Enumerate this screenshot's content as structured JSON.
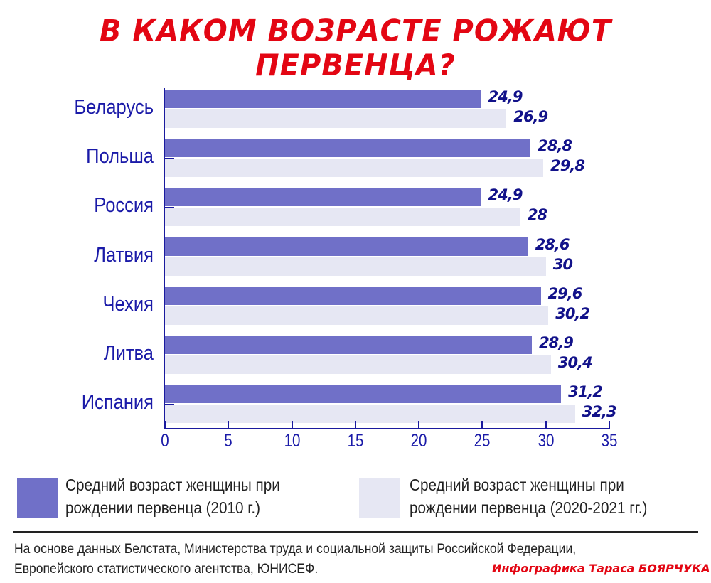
{
  "title": "В каком возрасте рожают первенца?",
  "colors": {
    "title": "#e30613",
    "series_2010": "#7070c8",
    "series_2020": "#e6e7f3",
    "labels": "#1a1aa8",
    "values": "#12128a"
  },
  "chart_data": {
    "type": "bar",
    "orientation": "horizontal",
    "title": "В каком возрасте рожают первенца?",
    "categories": [
      "Беларусь",
      "Польша",
      "Россия",
      "Латвия",
      "Чехия",
      "Литва",
      "Испания"
    ],
    "series": [
      {
        "name": "Средний возраст женщины при рождении первенца (2010 г.)",
        "color": "#7070c8",
        "values": [
          24.9,
          28.8,
          24.9,
          28.6,
          29.6,
          28.9,
          31.2
        ],
        "labels": [
          "24,9",
          "28,8",
          "24,9",
          "28,6",
          "29,6",
          "28,9",
          "31,2"
        ]
      },
      {
        "name": "Средний возраст женщины при рождении первенца (2020-2021 гг.)",
        "color": "#e6e7f3",
        "values": [
          26.9,
          29.8,
          28,
          30,
          30.2,
          30.4,
          32.3
        ],
        "labels": [
          "26,9",
          "29,8",
          "28",
          "30",
          "30,2",
          "30,4",
          "32,3"
        ]
      }
    ],
    "xlabel": "",
    "ylabel": "",
    "xlim": [
      0,
      35
    ],
    "xticks": [
      "0",
      "5",
      "10",
      "15",
      "20",
      "25",
      "30",
      "35"
    ],
    "grid": false,
    "legend_position": "bottom"
  },
  "legend": [
    {
      "line1": "Средний возраст женщины при",
      "line2": "рождении первенца (2010 г.)"
    },
    {
      "line1": "Средний возраст женщины при",
      "line2": "рождении первенца (2020-2021 гг.)"
    }
  ],
  "footer": {
    "source_line1": "На основе данных Белстата, Министерства труда и социальной защиты Российской Федерации,",
    "source_line2": "Европейского статистического агентства, ЮНИСЕФ.",
    "credit": "Инфографика Тараса БОЯРЧУКА"
  }
}
